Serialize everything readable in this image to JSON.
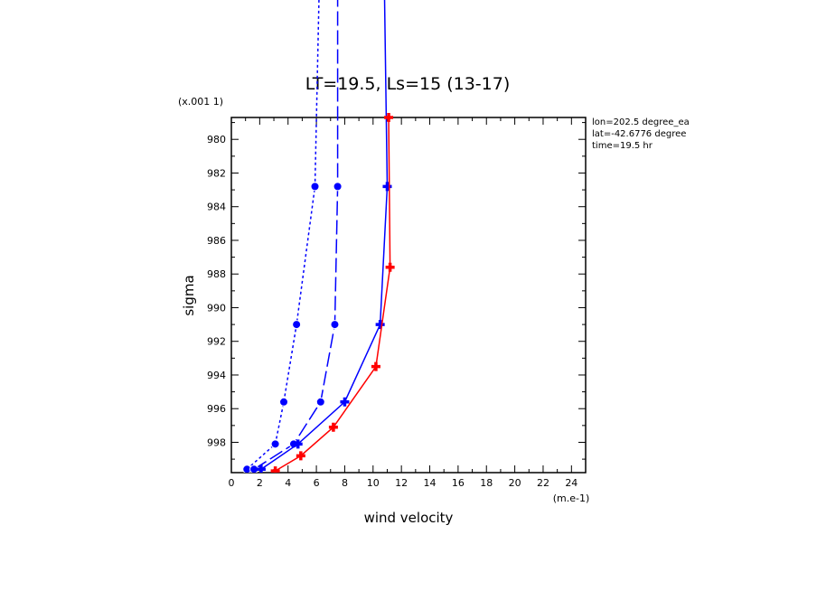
{
  "chart_data": {
    "type": "line",
    "title": "LT=19.5, Ls=15 (13-17)",
    "xlabel": "wind velocity",
    "ylabel": "sigma",
    "x_unit_label": "(m.e-1)",
    "y_unit_label": "(x.001 1)",
    "xlim": [
      0,
      25
    ],
    "ylim": [
      999.8,
      978.7
    ],
    "x_ticks": [
      0,
      2,
      4,
      6,
      8,
      10,
      12,
      14,
      16,
      18,
      20,
      22,
      24
    ],
    "x_tick_labels": [
      "0",
      "2",
      "4",
      "6",
      "8",
      "10",
      "12",
      "14",
      "16",
      "18",
      "20",
      "22",
      "24"
    ],
    "y_ticks": [
      980,
      982,
      984,
      986,
      988,
      990,
      992,
      994,
      996,
      998
    ],
    "y_tick_labels": [
      "980",
      "982",
      "984",
      "986",
      "988",
      "990",
      "992",
      "994",
      "996",
      "998"
    ],
    "info_lines": [
      "lon=202.5 degree_ea",
      "lat=-42.6776 degree",
      "time=19.5 hr"
    ],
    "series": [
      {
        "color": "#0000ff",
        "dash": "3,3",
        "marker": "circle",
        "points": [
          [
            1.1,
            999.6
          ],
          [
            3.1,
            998.1
          ],
          [
            3.7,
            995.6
          ],
          [
            4.6,
            991.0
          ],
          [
            5.9,
            982.8
          ],
          [
            6.2,
            971.0
          ]
        ]
      },
      {
        "color": "#0000ff",
        "dash": "16,5",
        "marker": "circle",
        "points": [
          [
            1.6,
            999.6
          ],
          [
            4.4,
            998.1
          ],
          [
            6.3,
            995.6
          ],
          [
            7.3,
            991.0
          ],
          [
            7.5,
            982.8
          ],
          [
            7.5,
            971.0
          ]
        ]
      },
      {
        "color": "#0000ff",
        "dash": "",
        "marker": "plus",
        "points": [
          [
            2.1,
            999.6
          ],
          [
            4.7,
            998.1
          ],
          [
            8.0,
            995.6
          ],
          [
            10.5,
            991.0
          ],
          [
            11.0,
            982.8
          ],
          [
            10.8,
            971.0
          ]
        ]
      },
      {
        "color": "#ff0000",
        "dash": "",
        "marker": "plus",
        "points": [
          [
            3.1,
            999.7
          ],
          [
            4.9,
            998.8
          ],
          [
            7.2,
            997.1
          ],
          [
            10.2,
            993.5
          ],
          [
            11.2,
            987.6
          ],
          [
            11.1,
            978.7
          ]
        ]
      }
    ]
  }
}
